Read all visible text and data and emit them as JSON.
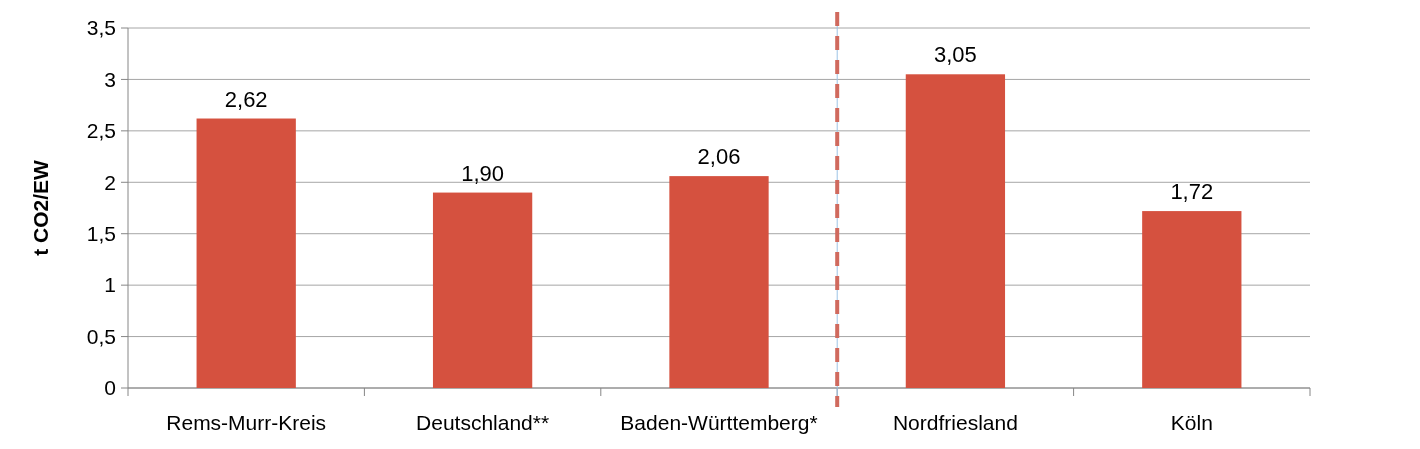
{
  "chart_data": {
    "type": "bar",
    "ylabel": "t CO2/EW",
    "categories": [
      "Rems-Murr-Kreis",
      "Deutschland**",
      "Baden-Württemberg*",
      "Nordfriesland",
      "Köln"
    ],
    "values": [
      2.62,
      1.9,
      2.06,
      3.05,
      1.72
    ],
    "value_labels": [
      "2,62",
      "1,90",
      "2,06",
      "3,05",
      "1,72"
    ],
    "color": "#d5513f",
    "ylim": [
      0,
      3.5
    ],
    "yticks": [
      0,
      {
        "value": 0.5,
        "label": "0,5"
      },
      1,
      {
        "value": 1.5,
        "label": "1,5"
      },
      2,
      {
        "value": 2.5,
        "label": "2,5"
      },
      3,
      {
        "value": 3.5,
        "label": "3,5"
      }
    ],
    "grid": "y"
  }
}
